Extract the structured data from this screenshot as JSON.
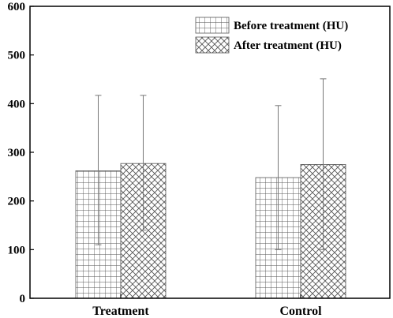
{
  "chart_data": {
    "type": "bar",
    "categories": [
      "Treatment",
      "Control"
    ],
    "series": [
      {
        "name": "Before treatment (HU)",
        "pattern": "grid",
        "values": [
          262,
          248
        ],
        "error_low": [
          110,
          100
        ],
        "error_high": [
          417,
          396
        ]
      },
      {
        "name": "After treatment (HU)",
        "pattern": "crosshatch",
        "values": [
          277,
          275
        ],
        "error_low": [
          140,
          100
        ],
        "error_high": [
          417,
          451
        ]
      }
    ],
    "ylim": [
      0,
      600
    ],
    "yticks": [
      0,
      100,
      200,
      300,
      400,
      500,
      600
    ],
    "ytick_labels": [
      "0",
      "100",
      "200",
      "300",
      "400",
      "500",
      "600"
    ],
    "title": "",
    "xlabel": "",
    "ylabel": "",
    "legend_position": "top-right",
    "grid": false
  }
}
